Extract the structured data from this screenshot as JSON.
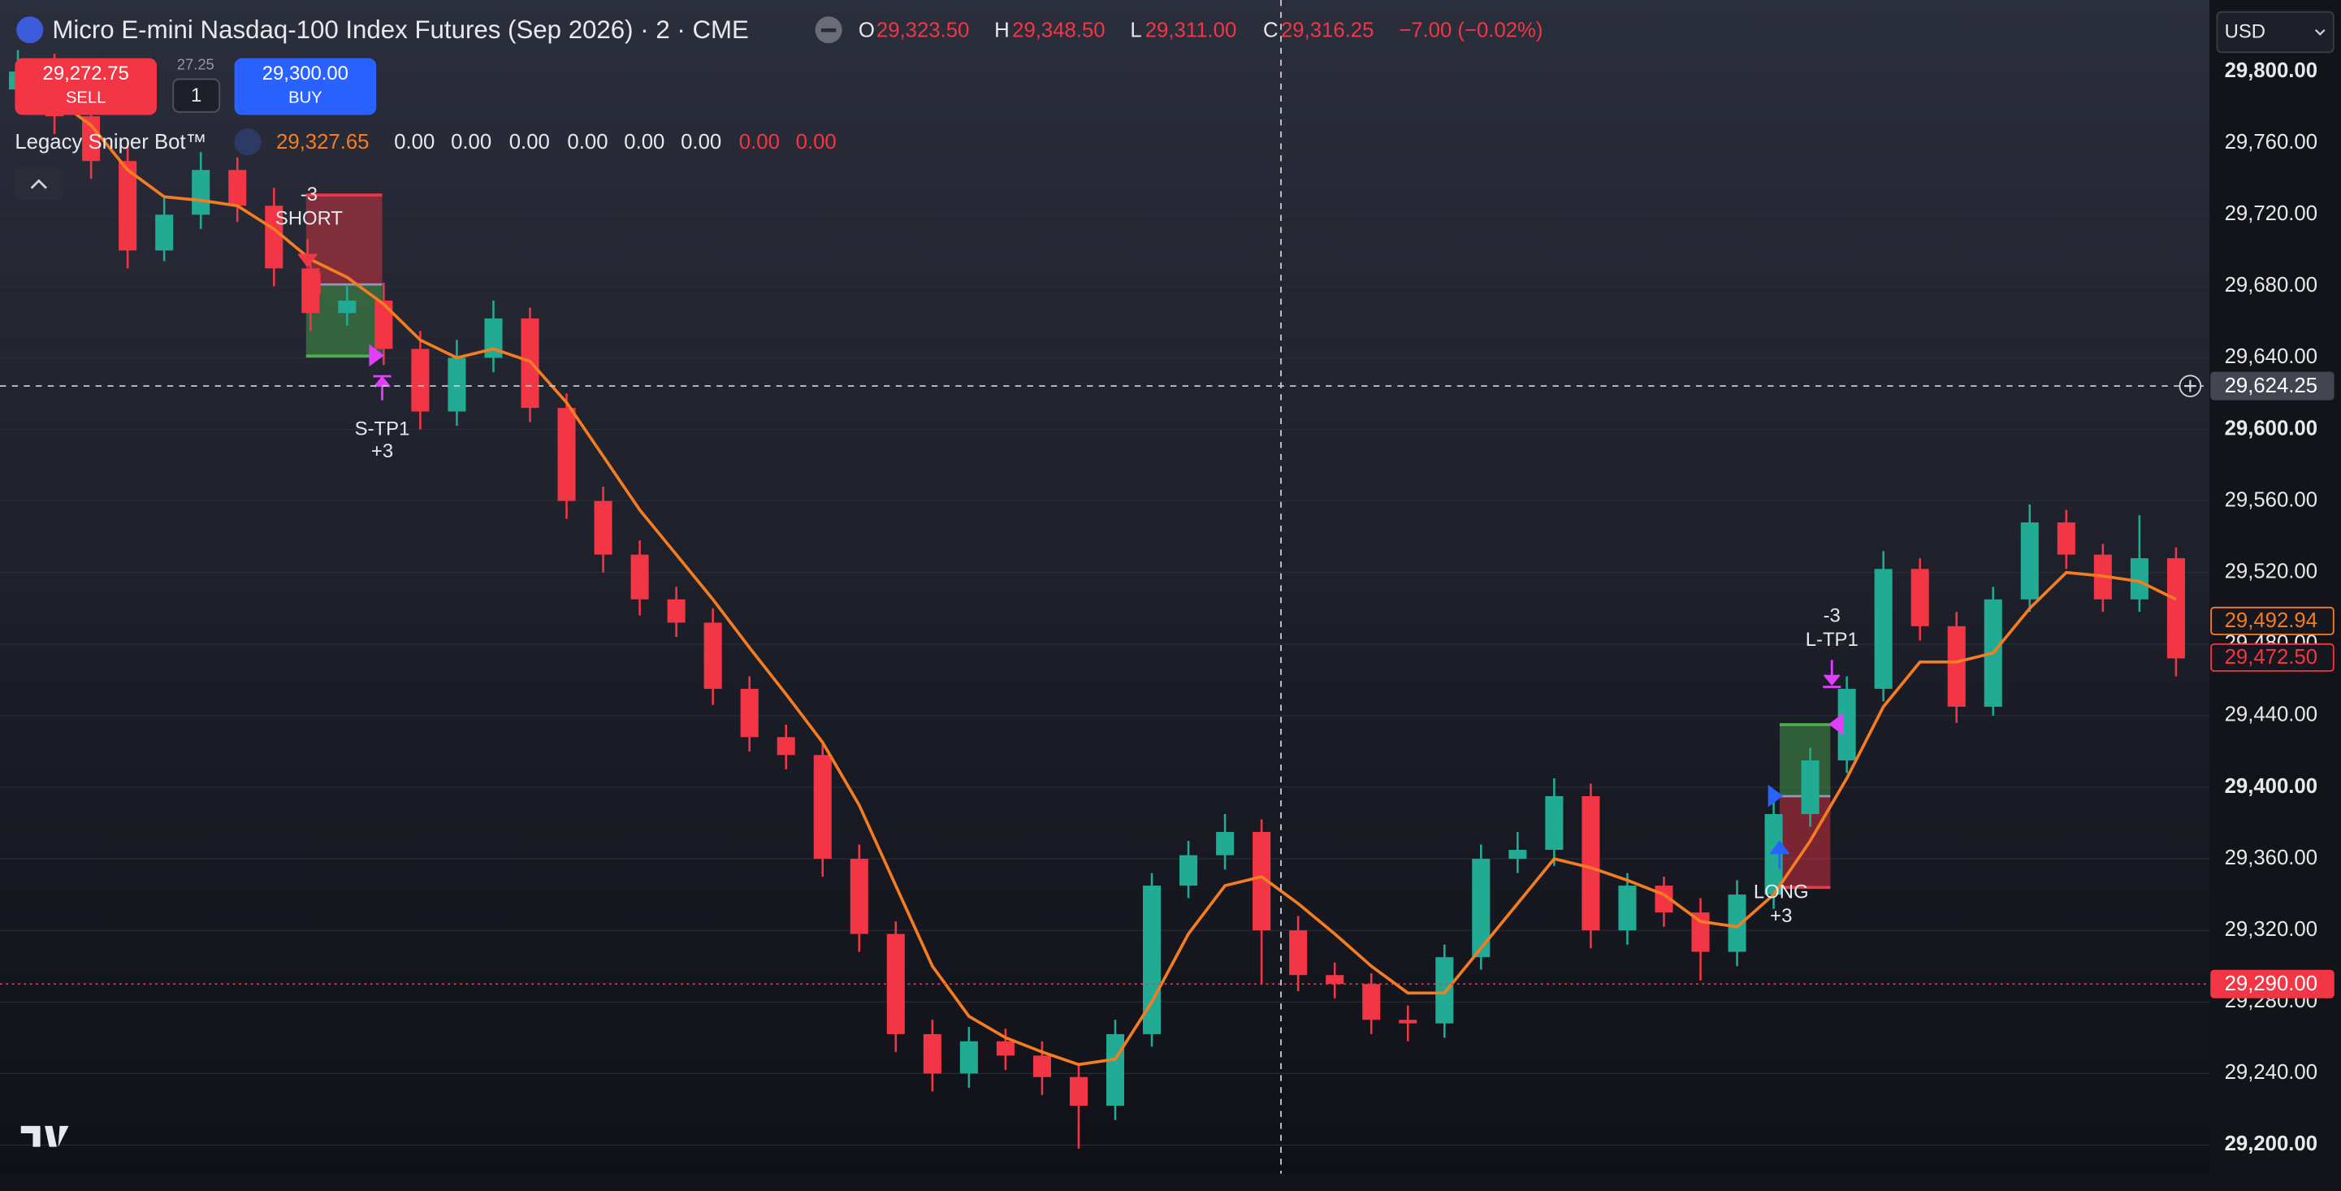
{
  "header": {
    "title": "Micro E-mini Nasdaq-100 Index Futures (Sep 2026) · 2 · CME",
    "open_label": "O",
    "open": "29,323.50",
    "high_label": "H",
    "high": "29,348.50",
    "low_label": "L",
    "low": "29,311.00",
    "close_label": "C",
    "close": "29,316.25",
    "change": "−7.00 (−0.02%)"
  },
  "trade": {
    "sell_price": "29,272.75",
    "sell": "SELL",
    "spread": "27.25",
    "quantity": "1",
    "buy_price": "29,300.00",
    "buy": "BUY"
  },
  "indicator": {
    "name": "Legacy Sniper Bot™",
    "values": [
      "29,327.65",
      "0.00",
      "0.00",
      "0.00",
      "0.00",
      "0.00",
      "0.00",
      "0.00",
      "0.00"
    ]
  },
  "currency": "USD",
  "chart_data": {
    "type": "candlestick",
    "up_color": "#22ab94",
    "down_color": "#f23645",
    "ma_color": "#f57c20",
    "open": [
      29790,
      29800,
      29775,
      29750,
      29700,
      29720,
      29745,
      29725,
      29690,
      29665,
      29672,
      29645,
      29610,
      29640,
      29662,
      29612,
      29560,
      29530,
      29505,
      29492,
      29455,
      29428,
      29418,
      29360,
      29318,
      29262,
      29240,
      29258,
      29250,
      29238,
      29222,
      29262,
      29345,
      29362,
      29375,
      29320,
      29295,
      29290,
      29270,
      29268,
      29305,
      29360,
      29365,
      29395,
      29320,
      29345,
      29330,
      29308,
      29340,
      29385,
      29415,
      29455,
      29522,
      29490,
      29445,
      29505,
      29548,
      29530,
      29505,
      29528
    ],
    "high": [
      29812,
      29810,
      29785,
      29758,
      29730,
      29755,
      29752,
      29735,
      29698,
      29680,
      29682,
      29655,
      29650,
      29672,
      29668,
      29620,
      29568,
      29538,
      29512,
      29500,
      29462,
      29435,
      29424,
      29368,
      29325,
      29270,
      29266,
      29265,
      29258,
      29245,
      29270,
      29352,
      29370,
      29385,
      29382,
      29328,
      29302,
      29296,
      29278,
      29312,
      29368,
      29375,
      29405,
      29402,
      29352,
      29350,
      29338,
      29348,
      29392,
      29422,
      29462,
      29532,
      29528,
      29498,
      29512,
      29558,
      29555,
      29536,
      29552,
      29534
    ],
    "low": [
      29780,
      29765,
      29740,
      29690,
      29694,
      29712,
      29716,
      29680,
      29655,
      29658,
      29636,
      29600,
      29602,
      29632,
      29604,
      29550,
      29520,
      29496,
      29484,
      29446,
      29420,
      29410,
      29350,
      29308,
      29252,
      29230,
      29232,
      29242,
      29228,
      29198,
      29214,
      29255,
      29338,
      29354,
      29290,
      29286,
      29282,
      29262,
      29258,
      29260,
      29298,
      29352,
      29356,
      29310,
      29312,
      29322,
      29292,
      29300,
      29332,
      29378,
      29408,
      29448,
      29482,
      29436,
      29440,
      29498,
      29522,
      29498,
      29498,
      29462
    ],
    "close": [
      29800,
      29775,
      29750,
      29700,
      29720,
      29745,
      29725,
      29690,
      29665,
      29672,
      29645,
      29610,
      29640,
      29662,
      29612,
      29560,
      29530,
      29505,
      29492,
      29455,
      29428,
      29418,
      29360,
      29318,
      29262,
      29240,
      29258,
      29250,
      29238,
      29222,
      29262,
      29345,
      29362,
      29375,
      29320,
      29295,
      29290,
      29270,
      29268,
      29305,
      29360,
      29365,
      29395,
      29320,
      29345,
      29330,
      29308,
      29340,
      29385,
      29415,
      29455,
      29522,
      29490,
      29445,
      29505,
      29548,
      29530,
      29505,
      29528,
      29472
    ],
    "ma": [
      29790,
      29785,
      29770,
      29745,
      29730,
      29728,
      29725,
      29712,
      29695,
      29685,
      29670,
      29650,
      29640,
      29645,
      29638,
      29615,
      29585,
      29555,
      29530,
      29505,
      29478,
      29452,
      29425,
      29390,
      29345,
      29300,
      29272,
      29260,
      29252,
      29245,
      29248,
      29280,
      29318,
      29345,
      29350,
      29335,
      29318,
      29300,
      29285,
      29285,
      29310,
      29335,
      29360,
      29355,
      29348,
      29340,
      29325,
      29322,
      29340,
      29370,
      29405,
      29445,
      29470,
      29470,
      29475,
      29500,
      29520,
      29518,
      29515,
      29505
    ],
    "ylim": [
      29184,
      29840
    ],
    "yticks": [
      {
        "value": 29200,
        "label": "29,200.00"
      },
      {
        "value": 29240,
        "label": "29,240.00"
      },
      {
        "value": 29280,
        "label": "29,280.00"
      },
      {
        "value": 29320,
        "label": "29,320.00"
      },
      {
        "value": 29360,
        "label": "29,360.00"
      },
      {
        "value": 29400,
        "label": "29,400.00"
      },
      {
        "value": 29440,
        "label": "29,440.00"
      },
      {
        "value": 29480,
        "label": "29,480.00"
      },
      {
        "value": 29520,
        "label": "29,520.00"
      },
      {
        "value": 29560,
        "label": "29,560.00"
      },
      {
        "value": 29600,
        "label": "29,600.00"
      },
      {
        "value": 29640,
        "label": "29,640.00"
      },
      {
        "value": 29680,
        "label": "29,680.00"
      },
      {
        "value": 29720,
        "label": "29,720.00"
      },
      {
        "value": 29760,
        "label": "29,760.00"
      },
      {
        "value": 29800,
        "label": "29,800.00"
      }
    ],
    "price_labels": [
      {
        "value": 29624.25,
        "label": "29,624.25",
        "color": "#434651",
        "filled": true,
        "line": "dashed"
      },
      {
        "value": 29492.94,
        "label": "29,492.94",
        "color": "#f57c20",
        "filled": false
      },
      {
        "value": 29472.5,
        "label": "29,472.50",
        "color": "#f23645",
        "filled": false
      },
      {
        "value": 29290,
        "label": "29,290.00",
        "color": "#f23645",
        "filled": true,
        "line": "dotted"
      }
    ],
    "positions": [
      {
        "entry": 29681,
        "stop": 29731,
        "target": 29641
      },
      {
        "entry": 29395,
        "stop": 29344,
        "target": 29435
      }
    ],
    "annotations": [
      "-3",
      "SHORT",
      "S-TP1",
      "+3",
      "-3",
      "L-TP1",
      "LONG",
      "+3"
    ]
  }
}
